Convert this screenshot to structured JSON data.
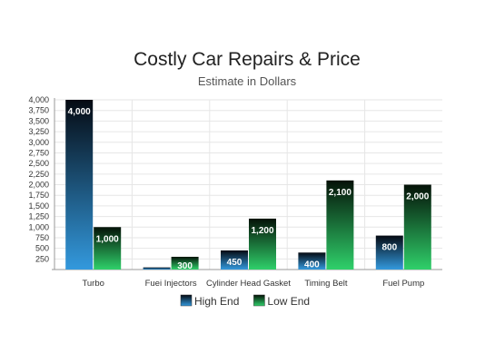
{
  "chart_data": {
    "type": "bar",
    "title": "Costly Car Repairs & Price",
    "subtitle": "Estimate in Dollars",
    "categories": [
      "Turbo",
      "Fuei Injectors",
      "Cylinder Head Gasket",
      "Timing Belt",
      "Fuel Pump"
    ],
    "series": [
      {
        "name": "High End",
        "values": [
          4000,
          50,
          450,
          400,
          800
        ],
        "labels": [
          "4,000",
          "",
          "450",
          "400",
          "800"
        ],
        "color_top": "#050a12",
        "color_bottom": "#3399dd"
      },
      {
        "name": "Low End",
        "values": [
          1000,
          300,
          1200,
          2100,
          2000
        ],
        "labels": [
          "1,000",
          "300",
          "1,200",
          "2,100",
          "2,000"
        ],
        "color_top": "#051208",
        "color_bottom": "#2fd06a"
      }
    ],
    "ylim": [
      0,
      4000
    ],
    "yticks": [
      "4,000",
      "3,750",
      "3,500",
      "3,250",
      "3,000",
      "2,750",
      "2,500",
      "2,250",
      "2,000",
      "1,750",
      "1,500",
      "1,250",
      "1,000",
      "750",
      "500",
      "250"
    ],
    "ytick_values": [
      4000,
      3750,
      3500,
      3250,
      3000,
      2750,
      2500,
      2250,
      2000,
      1750,
      1500,
      1250,
      1000,
      750,
      500,
      250
    ],
    "grid": true,
    "legend_position": "bottom"
  }
}
